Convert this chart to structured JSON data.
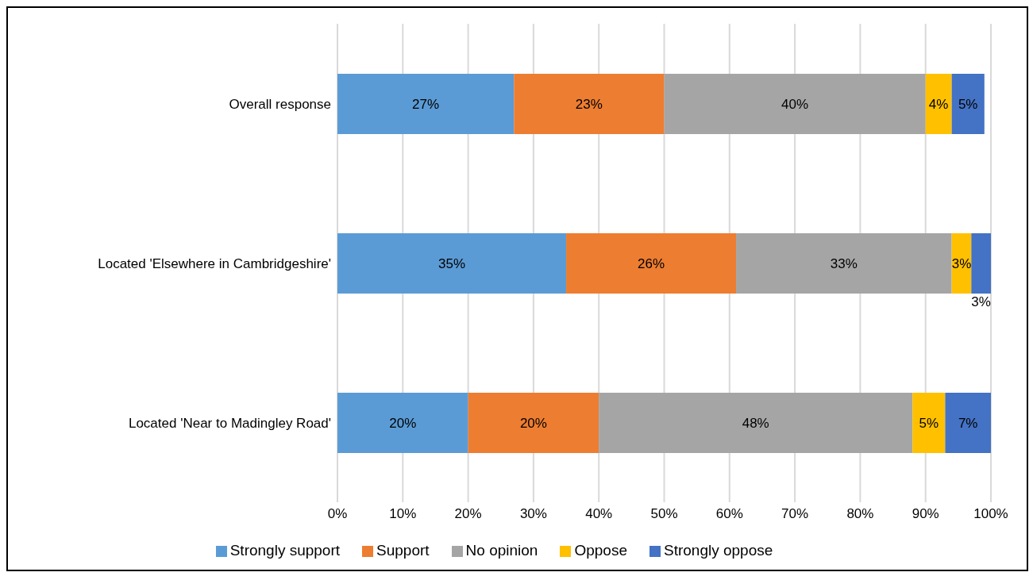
{
  "chart_data": {
    "type": "bar",
    "orientation": "horizontal",
    "stacked": true,
    "categories": [
      "Overall response",
      "Located 'Elsewhere in Cambridgeshire'",
      "Located 'Near to Madingley Road'"
    ],
    "series": [
      {
        "name": "Strongly support",
        "color": "#5b9bd5",
        "values": [
          27,
          35,
          20
        ],
        "value_labels": [
          "27%",
          "35%",
          "20%"
        ]
      },
      {
        "name": "Support",
        "color": "#ed7d31",
        "values": [
          23,
          26,
          20
        ],
        "value_labels": [
          "23%",
          "26%",
          "20%"
        ]
      },
      {
        "name": "No opinion",
        "color": "#a5a5a5",
        "values": [
          40,
          33,
          48
        ],
        "value_labels": [
          "40%",
          "33%",
          "48%"
        ]
      },
      {
        "name": "Oppose",
        "color": "#ffc000",
        "values": [
          4,
          3,
          5
        ],
        "value_labels": [
          "4%",
          "3%",
          "5%"
        ]
      },
      {
        "name": "Strongly oppose",
        "color": "#4472c4",
        "values": [
          5,
          3,
          7
        ],
        "value_labels": [
          "5%",
          "3%",
          "7%"
        ]
      }
    ],
    "xlim": [
      0,
      100
    ],
    "xticks": [
      {
        "value": 0,
        "label": "0%"
      },
      {
        "value": 10,
        "label": "10%"
      },
      {
        "value": 20,
        "label": "20%"
      },
      {
        "value": 30,
        "label": "30%"
      },
      {
        "value": 40,
        "label": "40%"
      },
      {
        "value": 50,
        "label": "50%"
      },
      {
        "value": 60,
        "label": "60%"
      },
      {
        "value": 70,
        "label": "70%"
      },
      {
        "value": 80,
        "label": "80%"
      },
      {
        "value": 90,
        "label": "90%"
      },
      {
        "value": 100,
        "label": "100%"
      }
    ],
    "grid": "x",
    "legend": "bottom"
  }
}
